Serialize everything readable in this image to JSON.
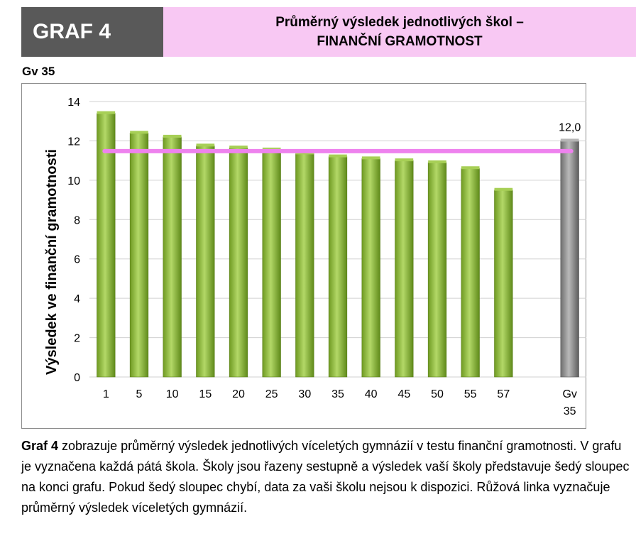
{
  "header": {
    "graf_label": "GRAF 4",
    "title_line1": "Průměrný výsledek jednotlivých škol –",
    "title_line2": "FINANČNÍ GRAMOTNOST"
  },
  "school_code": "Gv 35",
  "caption": {
    "lead": "Graf 4",
    "text": " zobrazuje průměrný výsledek jednotlivých víceletých gymnázií v testu finanční gramotnosti. V grafu je vyznačena každá pátá škola. Školy jsou řazeny sestupně a výsledek vaší školy představuje šedý sloupec na konci grafu. Pokud šedý sloupec chybí, data za vaši školu nejsou k dispozici. Růžová linka vyznačuje průměrný výsledek víceletých gymnázií."
  },
  "chart_data": {
    "type": "bar",
    "title": "",
    "xlabel": "",
    "ylabel": "Výsledek ve finanční gramotnosti",
    "ylim": [
      0,
      14
    ],
    "yticks": [
      "0",
      "2",
      "4",
      "6",
      "8",
      "10",
      "12",
      "14"
    ],
    "grid": true,
    "categories": [
      "1",
      "5",
      "10",
      "15",
      "20",
      "25",
      "30",
      "35",
      "40",
      "45",
      "50",
      "55",
      "57"
    ],
    "values": [
      13.4,
      12.4,
      12.2,
      11.75,
      11.65,
      11.55,
      11.35,
      11.2,
      11.1,
      11.0,
      10.9,
      10.6,
      9.5
    ],
    "highlight": {
      "category_line1": "Gv",
      "category_line2": "35",
      "value": 12.0,
      "label": "12,0"
    },
    "average_line": 11.48,
    "colors": {
      "bar": "#8cb43a",
      "highlight_bar": "#8c8c8c",
      "average_line": "#ee82ee"
    }
  }
}
